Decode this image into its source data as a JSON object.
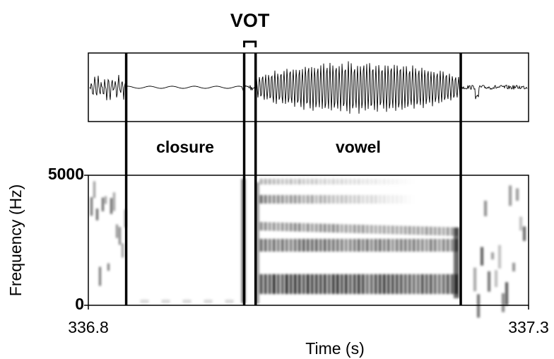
{
  "chart_data": {
    "type": "spectrogram",
    "xlabel": "Time (s)",
    "ylabel": "Frequency (Hz)",
    "xlim": [
      336.8,
      337.3
    ],
    "xticks": [
      336.8,
      337.3
    ],
    "ylim": [
      0,
      5000
    ],
    "yticks": [
      0,
      5000
    ],
    "intervals": [
      {
        "label": "closure",
        "start": 336.843,
        "end": 336.977
      },
      {
        "label": "VOT",
        "start": 336.977,
        "end": 336.99
      },
      {
        "label": "vowel",
        "start": 336.99,
        "end": 337.223
      }
    ]
  }
}
